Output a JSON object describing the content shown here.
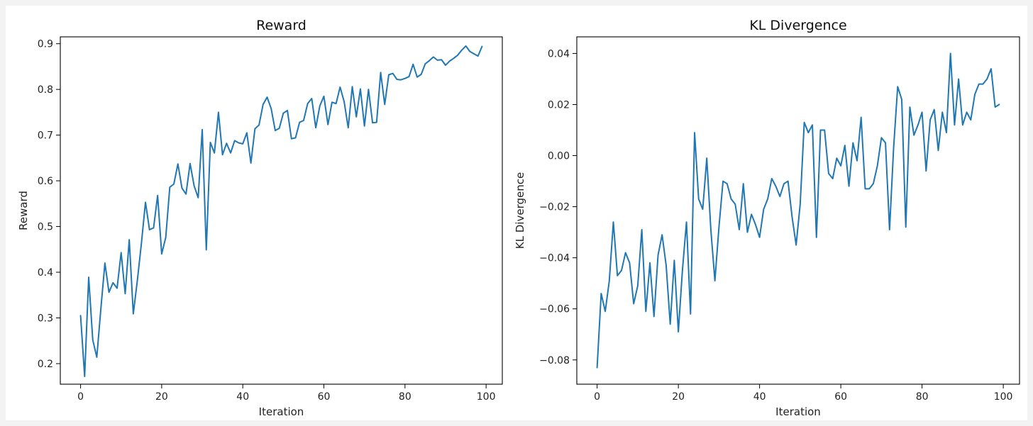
{
  "chart_data": [
    {
      "type": "line",
      "title": "Reward",
      "xlabel": "Iteration",
      "ylabel": "Reward",
      "xlim": [
        -5,
        104
      ],
      "ylim": [
        0.155,
        0.915
      ],
      "xticks": [
        0,
        20,
        40,
        60,
        80,
        100
      ],
      "xtick_labels": [
        "0",
        "20",
        "40",
        "60",
        "80",
        "100"
      ],
      "yticks": [
        0.2,
        0.3,
        0.4,
        0.5,
        0.6,
        0.7,
        0.8,
        0.9
      ],
      "ytick_labels": [
        "0.2",
        "0.3",
        "0.4",
        "0.5",
        "0.6",
        "0.7",
        "0.8",
        "0.9"
      ],
      "grid": false,
      "line_color": "#1f77b4",
      "series": [
        {
          "x": [
            0,
            1,
            2,
            3,
            4,
            5,
            6,
            7,
            8,
            9,
            10,
            11,
            12,
            13,
            14,
            15,
            16,
            17,
            18,
            19,
            20,
            21,
            22,
            23,
            24,
            25,
            26,
            27,
            28,
            29,
            30,
            31,
            32,
            33,
            34,
            35,
            36,
            37,
            38,
            39,
            40,
            41,
            42,
            43,
            44,
            45,
            46,
            47,
            48,
            49,
            50,
            51,
            52,
            53,
            54,
            55,
            56,
            57,
            58,
            59,
            60,
            61,
            62,
            63,
            64,
            65,
            66,
            67,
            68,
            69,
            70,
            71,
            72,
            73,
            74,
            75,
            76,
            77,
            78,
            79,
            80,
            81,
            82,
            83,
            84,
            85,
            86,
            87,
            88,
            89,
            90,
            91,
            92,
            93,
            94,
            95,
            96,
            97,
            98,
            99
          ],
          "values": [
            0.305,
            0.172,
            0.389,
            0.252,
            0.214,
            0.32,
            0.42,
            0.356,
            0.377,
            0.365,
            0.443,
            0.353,
            0.471,
            0.309,
            0.382,
            0.463,
            0.553,
            0.493,
            0.497,
            0.568,
            0.44,
            0.476,
            0.586,
            0.593,
            0.637,
            0.584,
            0.571,
            0.638,
            0.589,
            0.563,
            0.712,
            0.449,
            0.684,
            0.661,
            0.75,
            0.657,
            0.682,
            0.661,
            0.688,
            0.683,
            0.681,
            0.705,
            0.639,
            0.714,
            0.722,
            0.767,
            0.783,
            0.758,
            0.71,
            0.715,
            0.748,
            0.754,
            0.692,
            0.694,
            0.728,
            0.732,
            0.769,
            0.78,
            0.716,
            0.764,
            0.785,
            0.723,
            0.772,
            0.769,
            0.805,
            0.773,
            0.716,
            0.806,
            0.74,
            0.801,
            0.72,
            0.8,
            0.727,
            0.728,
            0.837,
            0.767,
            0.832,
            0.835,
            0.822,
            0.821,
            0.824,
            0.828,
            0.855,
            0.827,
            0.833,
            0.856,
            0.863,
            0.871,
            0.864,
            0.865,
            0.853,
            0.862,
            0.868,
            0.875,
            0.886,
            0.895,
            0.883,
            0.878,
            0.873,
            0.894
          ]
        }
      ]
    },
    {
      "type": "line",
      "title": "KL Divergence",
      "xlabel": "Iteration",
      "ylabel": "KL Divergence",
      "xlim": [
        -5,
        104
      ],
      "ylim": [
        -0.0895,
        0.0465
      ],
      "xticks": [
        0,
        20,
        40,
        60,
        80,
        100
      ],
      "xtick_labels": [
        "0",
        "20",
        "40",
        "60",
        "80",
        "100"
      ],
      "yticks": [
        -0.08,
        -0.06,
        -0.04,
        -0.02,
        0.0,
        0.02,
        0.04
      ],
      "ytick_labels": [
        "−0.08",
        "−0.06",
        "−0.04",
        "−0.02",
        "0.00",
        "0.02",
        "0.04"
      ],
      "grid": false,
      "line_color": "#1f77b4",
      "series": [
        {
          "x": [
            0,
            1,
            2,
            3,
            4,
            5,
            6,
            7,
            8,
            9,
            10,
            11,
            12,
            13,
            14,
            15,
            16,
            17,
            18,
            19,
            20,
            21,
            22,
            23,
            24,
            25,
            26,
            27,
            28,
            29,
            30,
            31,
            32,
            33,
            34,
            35,
            36,
            37,
            38,
            39,
            40,
            41,
            42,
            43,
            44,
            45,
            46,
            47,
            48,
            49,
            50,
            51,
            52,
            53,
            54,
            55,
            56,
            57,
            58,
            59,
            60,
            61,
            62,
            63,
            64,
            65,
            66,
            67,
            68,
            69,
            70,
            71,
            72,
            73,
            74,
            75,
            76,
            77,
            78,
            79,
            80,
            81,
            82,
            83,
            84,
            85,
            86,
            87,
            88,
            89,
            90,
            91,
            92,
            93,
            94,
            95,
            96,
            97,
            98,
            99
          ],
          "values": [
            -0.083,
            -0.054,
            -0.061,
            -0.049,
            -0.026,
            -0.047,
            -0.045,
            -0.038,
            -0.042,
            -0.058,
            -0.051,
            -0.029,
            -0.061,
            -0.042,
            -0.063,
            -0.039,
            -0.031,
            -0.043,
            -0.066,
            -0.041,
            -0.069,
            -0.045,
            -0.026,
            -0.062,
            0.009,
            -0.017,
            -0.021,
            -0.001,
            -0.029,
            -0.049,
            -0.028,
            -0.01,
            -0.011,
            -0.017,
            -0.019,
            -0.029,
            -0.011,
            -0.03,
            -0.023,
            -0.027,
            -0.032,
            -0.021,
            -0.017,
            -0.009,
            -0.012,
            -0.016,
            -0.011,
            -0.01,
            -0.024,
            -0.035,
            -0.019,
            0.013,
            0.009,
            0.012,
            -0.032,
            0.01,
            0.01,
            -0.007,
            -0.009,
            -0.001,
            -0.004,
            0.004,
            -0.012,
            0.005,
            -0.002,
            0.015,
            -0.013,
            -0.013,
            -0.011,
            -0.004,
            0.007,
            0.005,
            -0.029,
            0.003,
            0.027,
            0.022,
            -0.028,
            0.019,
            0.008,
            0.012,
            0.017,
            -0.006,
            0.014,
            0.018,
            0.002,
            0.017,
            0.009,
            0.04,
            0.012,
            0.03,
            0.012,
            0.017,
            0.014,
            0.024,
            0.028,
            0.028,
            0.03,
            0.034,
            0.019,
            0.02
          ]
        }
      ]
    }
  ]
}
